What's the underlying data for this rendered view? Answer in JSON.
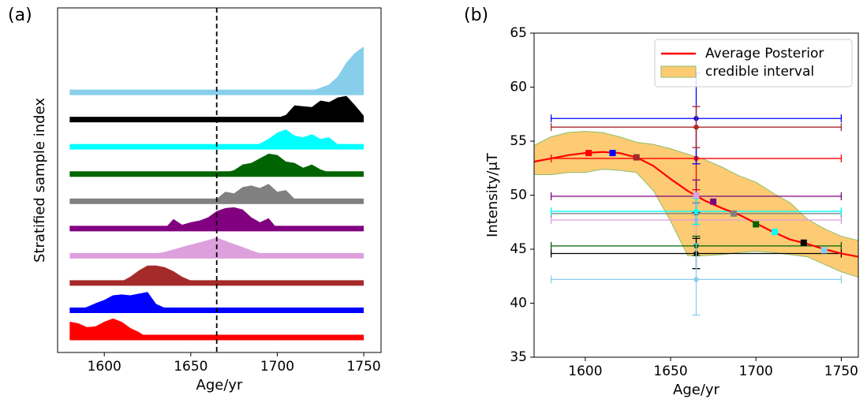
{
  "chart_data": [
    {
      "type": "ridgeline",
      "panel_label": "(a)",
      "xlabel": "Age/yr",
      "ylabel": "Stratified sample index",
      "xlim": [
        1573,
        1760
      ],
      "xticks": [
        1600,
        1650,
        1700,
        1750
      ],
      "ylim": [
        -0.55,
        12.1
      ],
      "vline": 1665,
      "x": [
        1580,
        1585,
        1590,
        1595,
        1600,
        1605,
        1610,
        1615,
        1620,
        1625,
        1630,
        1635,
        1640,
        1645,
        1650,
        1655,
        1660,
        1665,
        1670,
        1675,
        1680,
        1685,
        1690,
        1695,
        1700,
        1705,
        1710,
        1715,
        1720,
        1725,
        1730,
        1735,
        1740,
        1745,
        1750
      ],
      "series": [
        {
          "color": "#ff0000",
          "values": [
            0.58,
            0.52,
            0.38,
            0.41,
            0.58,
            0.7,
            0.58,
            0.35,
            0.2,
            0,
            0,
            0,
            0,
            0,
            0,
            0,
            0,
            0,
            0,
            0,
            0,
            0,
            0,
            0,
            0,
            0,
            0,
            0,
            0,
            0,
            0,
            0,
            0,
            0,
            0
          ]
        },
        {
          "color": "#0000ff",
          "values": [
            0,
            0.03,
            0.12,
            0.26,
            0.38,
            0.55,
            0.58,
            0.55,
            0.61,
            0.67,
            0.23,
            0.09,
            0,
            0,
            0,
            0,
            0,
            0,
            0,
            0,
            0,
            0,
            0,
            0,
            0,
            0,
            0,
            0,
            0,
            0,
            0,
            0,
            0,
            0,
            0
          ]
        },
        {
          "color": "#a52a2a",
          "values": [
            0,
            0,
            0,
            0,
            0,
            0,
            0.06,
            0.23,
            0.46,
            0.64,
            0.64,
            0.58,
            0.43,
            0.23,
            0.09,
            0.03,
            0,
            0,
            0,
            0,
            0,
            0,
            0,
            0,
            0,
            0,
            0,
            0,
            0,
            0,
            0,
            0,
            0,
            0,
            0
          ]
        },
        {
          "color": "#dda0dd",
          "values": [
            0,
            0,
            0,
            0,
            0,
            0,
            0,
            0.03,
            0.03,
            0.06,
            0.09,
            0.14,
            0.23,
            0.32,
            0.41,
            0.49,
            0.58,
            0.67,
            0.55,
            0.43,
            0.32,
            0.2,
            0.09,
            0,
            0,
            0,
            0,
            0,
            0,
            0,
            0,
            0,
            0,
            0,
            0
          ]
        },
        {
          "color": "#800080",
          "values": [
            0,
            0,
            0,
            0,
            0,
            0,
            0,
            0,
            0,
            0,
            0,
            0,
            0.35,
            0.14,
            0.23,
            0.29,
            0.41,
            0.64,
            0.75,
            0.78,
            0.7,
            0.41,
            0.23,
            0.38,
            0,
            0,
            0,
            0,
            0,
            0,
            0,
            0,
            0,
            0,
            0
          ]
        },
        {
          "color": "#808080",
          "values": [
            0,
            0,
            0,
            0,
            0,
            0,
            0,
            0,
            0,
            0,
            0,
            0,
            0,
            0,
            0,
            0,
            0,
            0.09,
            0.35,
            0.29,
            0.52,
            0.58,
            0.49,
            0.64,
            0.35,
            0.41,
            0.09,
            0,
            0,
            0,
            0,
            0,
            0,
            0,
            0
          ]
        },
        {
          "color": "#006400",
          "values": [
            0,
            0,
            0,
            0,
            0,
            0,
            0,
            0,
            0,
            0,
            0,
            0,
            0,
            0,
            0,
            0,
            0,
            0,
            0.06,
            0.14,
            0.35,
            0.41,
            0.58,
            0.75,
            0.7,
            0.46,
            0.41,
            0.23,
            0.35,
            0.17,
            0.06,
            0,
            0,
            0,
            0
          ]
        },
        {
          "color": "#00ffff",
          "values": [
            0,
            0,
            0,
            0,
            0,
            0,
            0,
            0,
            0,
            0,
            0,
            0,
            0,
            0,
            0,
            0,
            0,
            0,
            0,
            0,
            0,
            0,
            0.12,
            0.29,
            0.52,
            0.64,
            0.41,
            0.35,
            0.46,
            0.29,
            0.35,
            0.09,
            0,
            0,
            0
          ]
        },
        {
          "color": "#000000",
          "values": [
            0,
            0,
            0,
            0,
            0,
            0,
            0,
            0,
            0,
            0,
            0,
            0,
            0,
            0,
            0,
            0,
            0,
            0,
            0,
            0,
            0,
            0,
            0,
            0,
            0.06,
            0.17,
            0.52,
            0.49,
            0.46,
            0.7,
            0.64,
            0.81,
            0.87,
            0.52,
            0.14
          ]
        },
        {
          "color": "#87ceeb",
          "values": [
            0,
            0,
            0,
            0,
            0,
            0,
            0,
            0,
            0,
            0,
            0,
            0,
            0,
            0,
            0,
            0,
            0,
            0,
            0,
            0,
            0,
            0,
            0,
            0,
            0,
            0,
            0,
            0,
            0.06,
            0.17,
            0.29,
            0.58,
            1.1,
            1.45,
            1.68
          ]
        }
      ]
    },
    {
      "type": "line",
      "panel_label": "(b)",
      "xlabel": "Age/yr",
      "ylabel": "Intensity/μT",
      "xlim": [
        1570,
        1760
      ],
      "xticks": [
        1600,
        1650,
        1700,
        1750
      ],
      "ylim": [
        35,
        65
      ],
      "yticks": [
        35,
        40,
        45,
        50,
        55,
        60,
        65
      ],
      "legend": "upper right",
      "x": [
        1570,
        1580,
        1590,
        1600,
        1610,
        1620,
        1630,
        1640,
        1650,
        1660,
        1670,
        1680,
        1690,
        1700,
        1710,
        1720,
        1730,
        1740,
        1750,
        1760
      ],
      "band": {
        "name": "credible interval",
        "color": "#fccb74",
        "edgecolor": "#8fbf6a",
        "upper": [
          54.6,
          55.4,
          55.8,
          55.9,
          55.8,
          55.4,
          54.9,
          54.7,
          54.3,
          53.8,
          53.3,
          52.6,
          51.8,
          51.2,
          50.2,
          49.3,
          47.8,
          46.9,
          46.2,
          45.8
        ],
        "lower": [
          51.9,
          51.9,
          52.1,
          52.1,
          52.4,
          52.3,
          52.1,
          50.4,
          47.6,
          44.4,
          44.4,
          44.5,
          44.7,
          44.8,
          44.7,
          44.5,
          44.3,
          43.6,
          42.9,
          42.4
        ]
      },
      "series": [
        {
          "name": "Average Posterior",
          "color": "#ff0000",
          "values": [
            53.1,
            53.4,
            53.7,
            53.9,
            54.0,
            53.9,
            53.5,
            52.7,
            51.5,
            50.4,
            49.5,
            48.8,
            48.2,
            47.4,
            46.6,
            45.9,
            45.5,
            45.0,
            44.6,
            44.3
          ]
        }
      ],
      "samples": [
        {
          "color": "#ff0000",
          "x": 1665,
          "y": 53.4,
          "yerr": 2.9,
          "xmin": 1580,
          "xmax": 1750,
          "square_x": 1602,
          "square_y": 53.9
        },
        {
          "color": "#0000ff",
          "x": 1665,
          "y": 57.1,
          "yerr": 4.2,
          "xmin": 1580,
          "xmax": 1750,
          "square_x": 1616,
          "square_y": 53.9
        },
        {
          "color": "#a52a2a",
          "x": 1665,
          "y": 56.3,
          "yerr": 1.9,
          "xmin": 1580,
          "xmax": 1750,
          "square_x": 1630,
          "square_y": 53.5
        },
        {
          "color": "#dda0dd",
          "x": 1665,
          "y": 47.7,
          "yerr": 1.5,
          "xmin": 1580,
          "xmax": 1750,
          "square_x": 1665,
          "square_y": 50.0
        },
        {
          "color": "#800080",
          "x": 1665,
          "y": 49.9,
          "yerr": 1.5,
          "xmin": 1580,
          "xmax": 1750,
          "square_x": 1675,
          "square_y": 49.4
        },
        {
          "color": "#808080",
          "x": 1665,
          "y": 48.3,
          "yerr": 1.0,
          "xmin": 1580,
          "xmax": 1750,
          "square_x": 1687,
          "square_y": 48.3
        },
        {
          "color": "#006400",
          "x": 1665,
          "y": 45.3,
          "yerr": 0.9,
          "xmin": 1580,
          "xmax": 1750,
          "square_x": 1700,
          "square_y": 47.3
        },
        {
          "color": "#00ffff",
          "x": 1665,
          "y": 48.5,
          "yerr": 1.2,
          "xmin": 1580,
          "xmax": 1750,
          "square_x": 1711,
          "square_y": 46.6
        },
        {
          "color": "#000000",
          "x": 1665,
          "y": 44.6,
          "yerr": 1.4,
          "xmin": 1580,
          "xmax": 1750,
          "square_x": 1728,
          "square_y": 45.6
        },
        {
          "color": "#87ceeb",
          "x": 1665,
          "y": 42.2,
          "yerr": 3.3,
          "xmin": 1580,
          "xmax": 1750,
          "square_x": 1740,
          "square_y": 44.9
        }
      ]
    }
  ]
}
